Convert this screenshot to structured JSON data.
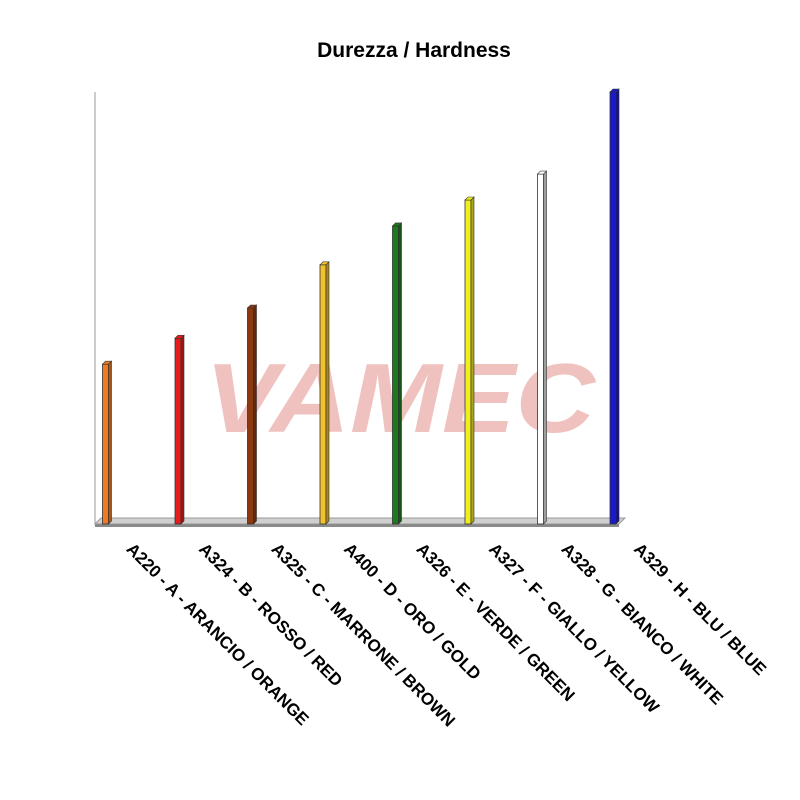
{
  "watermark_text": "VAMEC",
  "chart_data": {
    "type": "bar",
    "title": "Durezza / Hardness",
    "xlabel": "",
    "ylabel": "",
    "ylim": [
      0,
      100
    ],
    "grid": false,
    "legend": "none",
    "categories": [
      "A220 - A - ARANCIO / ORANGE",
      "A324 - B - ROSSO / RED",
      "A325 - C - MARRONE / BROWN",
      "A400 - D - ORO / GOLD",
      "A326 - E - VERDE / GREEN",
      "A327 - F - GIALLO / YELLOW",
      "A328 - G - BIANCO / WHITE",
      "A329 - H - BLU / BLUE"
    ],
    "values": [
      37,
      43,
      50,
      60,
      69,
      75,
      81,
      100
    ],
    "colors": [
      "#f07a22",
      "#e81c1c",
      "#8b3a10",
      "#f2c12e",
      "#1b7a1b",
      "#f2ee1c",
      "#ffffff",
      "#1a1acc"
    ]
  }
}
